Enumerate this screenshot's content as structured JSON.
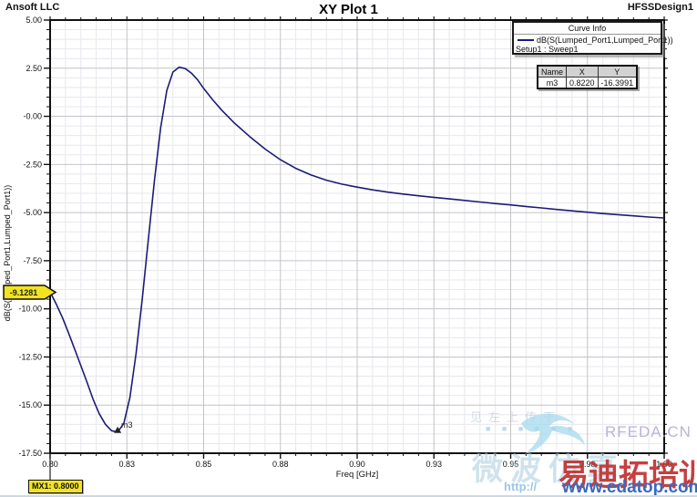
{
  "header": {
    "left": "Ansoft LLC",
    "right": "HFSSDesign1"
  },
  "legend": {
    "title": "Curve Info",
    "series_label": "dB(S(Lumped_Port1,Lumped_Port1))",
    "sweep_label": "Setup1 : Sweep1"
  },
  "marker_table": {
    "headers": [
      "Name",
      "X",
      "Y"
    ],
    "rows": [
      [
        "m3",
        "0.8220",
        "-16.3991"
      ]
    ]
  },
  "flags": {
    "y_value_flag": "-9.1281",
    "mx1_label": "MX1: 0.8000"
  },
  "watermarks": {
    "faint_row1": "见左上传干",
    "faint_row2": "■ ■ ■ ■ ■ ■",
    "rfeda": "RFEDA.CN",
    "cn_big": "微波仿真",
    "http": "http://",
    "cn_red": "易迪拓培训",
    "url_blue": "www.edatop.com"
  },
  "colors": {
    "curve": "#1b1b78",
    "grid_major": "#c4c4c8",
    "grid_minor": "#e8e8ee",
    "axis": "#111111",
    "tick_text": "#111111",
    "flag_yellow": "#f2e320",
    "bird": "#a6d9ec"
  },
  "chart_data": {
    "type": "line",
    "title": "XY Plot 1",
    "xlabel": "Freq [GHz]",
    "ylabel": "dB(S(Lumped_Port1,Lumped_Port1))",
    "xlim": [
      0.8,
      1.0
    ],
    "ylim": [
      -17.5,
      5.0
    ],
    "grid": true,
    "legend_position": "top-right",
    "x_major_ticks": [
      {
        "v": 0.8,
        "label": "0.80"
      },
      {
        "v": 0.825,
        "label": "0.83"
      },
      {
        "v": 0.85,
        "label": "0.85"
      },
      {
        "v": 0.875,
        "label": "0.88"
      },
      {
        "v": 0.9,
        "label": "0.90"
      },
      {
        "v": 0.925,
        "label": "0.93"
      },
      {
        "v": 0.95,
        "label": "0.95"
      },
      {
        "v": 0.975,
        "label": "0.98"
      },
      {
        "v": 1.0,
        "label": "1.00"
      }
    ],
    "y_major_ticks": [
      {
        "v": 5.0,
        "label": "5.00"
      },
      {
        "v": 2.5,
        "label": "2.50"
      },
      {
        "v": 0.0,
        "label": "-0.00"
      },
      {
        "v": -2.5,
        "label": "-2.50"
      },
      {
        "v": -5.0,
        "label": "-5.00"
      },
      {
        "v": -7.5,
        "label": "-7.50"
      },
      {
        "v": -10.0,
        "label": "-10.00"
      },
      {
        "v": -12.5,
        "label": "-12.50"
      },
      {
        "v": -15.0,
        "label": "-15.00"
      },
      {
        "v": -17.5,
        "label": "-17.50"
      }
    ],
    "x_minor_step": 0.005,
    "y_minor_step": 0.5,
    "series": [
      {
        "name": "dB(S(Lumped_Port1,Lumped_Port1))",
        "color": "#1b1b78",
        "points": [
          [
            0.8,
            -9.128
          ],
          [
            0.802,
            -9.75
          ],
          [
            0.804,
            -10.45
          ],
          [
            0.806,
            -11.25
          ],
          [
            0.808,
            -12.1
          ],
          [
            0.81,
            -12.95
          ],
          [
            0.812,
            -13.8
          ],
          [
            0.814,
            -14.7
          ],
          [
            0.816,
            -15.45
          ],
          [
            0.818,
            -16.0
          ],
          [
            0.82,
            -16.33
          ],
          [
            0.822,
            -16.3991
          ],
          [
            0.824,
            -15.95
          ],
          [
            0.826,
            -14.6
          ],
          [
            0.828,
            -12.3
          ],
          [
            0.83,
            -9.5
          ],
          [
            0.832,
            -6.4
          ],
          [
            0.834,
            -3.3
          ],
          [
            0.836,
            -0.6
          ],
          [
            0.838,
            1.35
          ],
          [
            0.84,
            2.3
          ],
          [
            0.842,
            2.55
          ],
          [
            0.844,
            2.48
          ],
          [
            0.846,
            2.25
          ],
          [
            0.848,
            1.9
          ],
          [
            0.85,
            1.45
          ],
          [
            0.853,
            0.85
          ],
          [
            0.856,
            0.3
          ],
          [
            0.86,
            -0.35
          ],
          [
            0.865,
            -1.05
          ],
          [
            0.87,
            -1.7
          ],
          [
            0.875,
            -2.25
          ],
          [
            0.88,
            -2.7
          ],
          [
            0.885,
            -3.05
          ],
          [
            0.89,
            -3.32
          ],
          [
            0.895,
            -3.52
          ],
          [
            0.9,
            -3.68
          ],
          [
            0.905,
            -3.82
          ],
          [
            0.91,
            -3.94
          ],
          [
            0.915,
            -4.04
          ],
          [
            0.92,
            -4.13
          ],
          [
            0.925,
            -4.21
          ],
          [
            0.93,
            -4.29
          ],
          [
            0.935,
            -4.37
          ],
          [
            0.94,
            -4.45
          ],
          [
            0.945,
            -4.53
          ],
          [
            0.95,
            -4.6
          ],
          [
            0.955,
            -4.68
          ],
          [
            0.96,
            -4.76
          ],
          [
            0.965,
            -4.84
          ],
          [
            0.97,
            -4.91
          ],
          [
            0.975,
            -4.98
          ],
          [
            0.98,
            -5.05
          ],
          [
            0.985,
            -5.11
          ],
          [
            0.99,
            -5.17
          ],
          [
            0.995,
            -5.23
          ],
          [
            1.0,
            -5.28
          ]
        ]
      }
    ],
    "markers": [
      {
        "name": "m3",
        "x": 0.822,
        "y": -16.3991
      }
    ],
    "axis_markers": [
      {
        "name": "MX1",
        "x": 0.8
      }
    ]
  }
}
